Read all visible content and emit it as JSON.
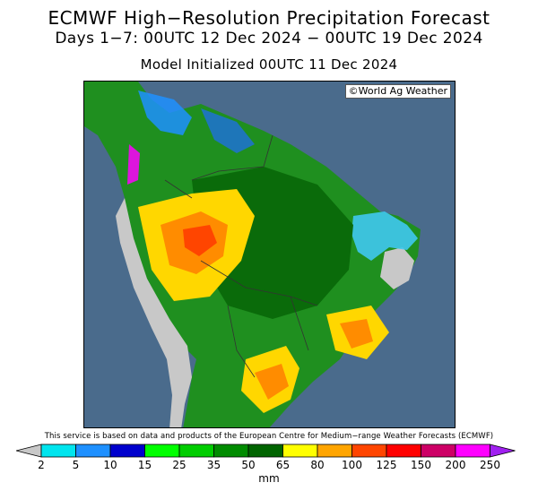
{
  "header": {
    "title": "ECMWF High−Resolution Precipitation Forecast",
    "period": "Days 1−7: 00UTC 12 Dec 2024 − 00UTC 19 Dec 2024",
    "initialized": "Model Initialized 00UTC 11 Dec 2024"
  },
  "map": {
    "region": "South America",
    "ocean_color": "#4a6b8c",
    "credit": "©World Ag Weather"
  },
  "source_note": "This service is based on data and products of the European Centre for Medium−range Weather Forecasts (ECMWF)",
  "legend": {
    "unit": "mm",
    "ticks": [
      "2",
      "5",
      "10",
      "15",
      "25",
      "35",
      "50",
      "65",
      "80",
      "100",
      "125",
      "150",
      "200",
      "250"
    ],
    "colors": [
      "#00e5ee",
      "#1e90ff",
      "#0000cd",
      "#00ff00",
      "#00cd00",
      "#008b00",
      "#006400",
      "#ffff00",
      "#ffa500",
      "#ff4500",
      "#ff0000",
      "#cd0066",
      "#ff00ff",
      "#a020f0"
    ],
    "below_color": "#c8c8c8",
    "above_color": "#a020f0"
  }
}
